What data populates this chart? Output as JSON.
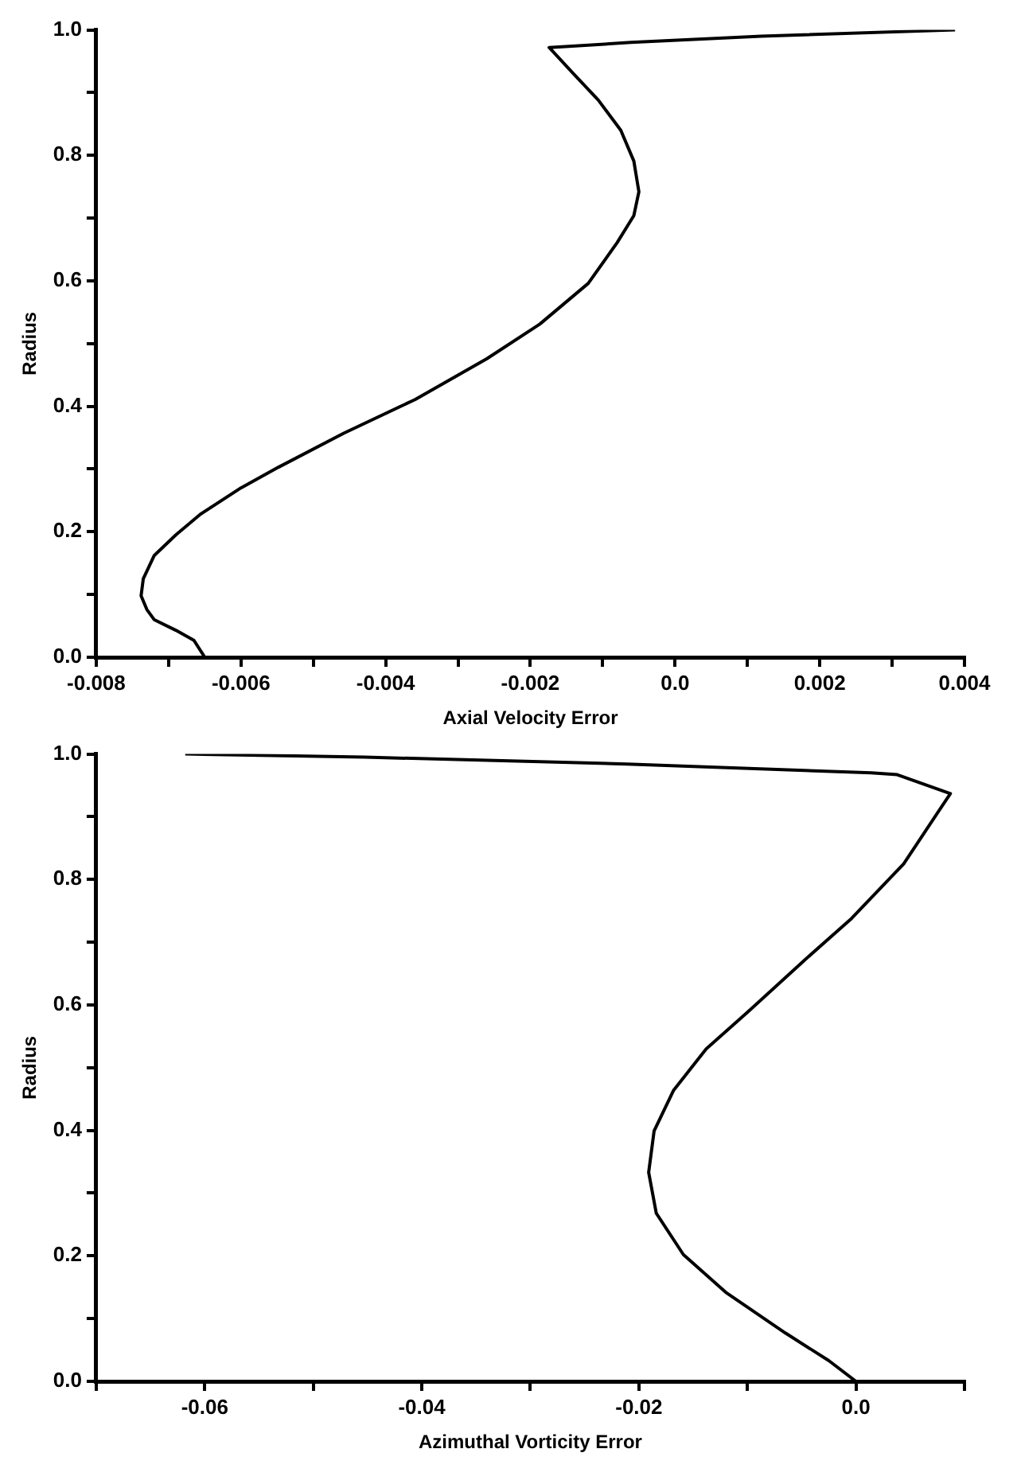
{
  "chart_data": [
    {
      "type": "line",
      "xlabel": "Axial Velocity Error",
      "ylabel": "Radius",
      "marker": "none",
      "grid": false,
      "color": "#000000",
      "x": [
        -0.0065,
        -0.00665,
        -0.0069,
        -0.0072,
        -0.0073,
        -0.00738,
        -0.00735,
        -0.0072,
        -0.0069,
        -0.00656,
        -0.006,
        -0.00548,
        -0.00458,
        -0.00359,
        -0.0026,
        -0.00187,
        -0.0012,
        -0.0008,
        -0.00057,
        -0.0005,
        -0.00057,
        -0.00075,
        -0.00106,
        -0.00142,
        -0.00174,
        -0.00061,
        0.00119,
        0.00387
      ],
      "values": [
        0,
        0.027,
        0.043,
        0.06,
        0.076,
        0.098,
        0.125,
        0.162,
        0.195,
        0.228,
        0.27,
        0.303,
        0.357,
        0.411,
        0.476,
        0.531,
        0.596,
        0.661,
        0.704,
        0.742,
        0.791,
        0.84,
        0.888,
        0.932,
        0.972,
        0.98,
        0.99,
        1.0
      ],
      "xlim": [
        -0.008,
        0.004
      ],
      "xticks": [
        -0.008,
        {
          "value": -0.007,
          "label": null
        },
        -0.006,
        {
          "value": -0.005,
          "label": null
        },
        -0.004,
        {
          "value": -0.003,
          "label": null
        },
        -0.002,
        {
          "value": -0.001,
          "label": null
        },
        {
          "value": 0,
          "label": "0.0"
        },
        {
          "value": 0.001,
          "label": null
        },
        0.002,
        {
          "value": 0.003,
          "label": null
        },
        0.004
      ],
      "ylim": [
        0,
        1
      ],
      "yticks": [
        {
          "value": 0,
          "label": "0.0"
        },
        {
          "value": 0.1,
          "label": null
        },
        0.2,
        {
          "value": 0.3,
          "label": null
        },
        0.4,
        {
          "value": 0.5,
          "label": null
        },
        0.6,
        {
          "value": 0.7,
          "label": null
        },
        0.8,
        {
          "value": 0.9,
          "label": null
        },
        {
          "value": 1,
          "label": "1.0"
        }
      ]
    },
    {
      "type": "line",
      "xlabel": "Azimuthal Vorticity Error",
      "ylabel": "Radius",
      "marker": "none",
      "grid": false,
      "color": "#000000",
      "x": [
        0.0,
        -0.0025,
        -0.0065,
        -0.012,
        -0.0159,
        -0.0184,
        -0.0191,
        -0.0186,
        -0.0168,
        -0.0138,
        -0.0095,
        -0.0047,
        -0.0004,
        0.0044,
        0.0087,
        0.0038,
        0.0014,
        -0.0211,
        -0.0453,
        -0.0618
      ],
      "values": [
        0,
        0.033,
        0.077,
        0.142,
        0.202,
        0.268,
        0.333,
        0.399,
        0.464,
        0.53,
        0.596,
        0.672,
        0.738,
        0.825,
        0.937,
        0.967,
        0.97,
        0.984,
        0.995,
        1.0
      ],
      "xlim": [
        -0.07,
        0.01
      ],
      "xticks": [
        {
          "value": -0.07,
          "label": null
        },
        -0.06,
        {
          "value": -0.05,
          "label": null
        },
        -0.04,
        {
          "value": -0.03,
          "label": null
        },
        -0.02,
        {
          "value": -0.01,
          "label": null
        },
        {
          "value": 0,
          "label": "0.0"
        },
        {
          "value": 0.01,
          "label": null
        }
      ],
      "ylim": [
        0,
        1
      ],
      "yticks": [
        {
          "value": 0,
          "label": "0.0"
        },
        {
          "value": 0.1,
          "label": null
        },
        0.2,
        {
          "value": 0.3,
          "label": null
        },
        0.4,
        {
          "value": 0.5,
          "label": null
        },
        0.6,
        {
          "value": 0.7,
          "label": null
        },
        0.8,
        {
          "value": 0.9,
          "label": null
        },
        {
          "value": 1,
          "label": "1.0"
        }
      ]
    }
  ]
}
